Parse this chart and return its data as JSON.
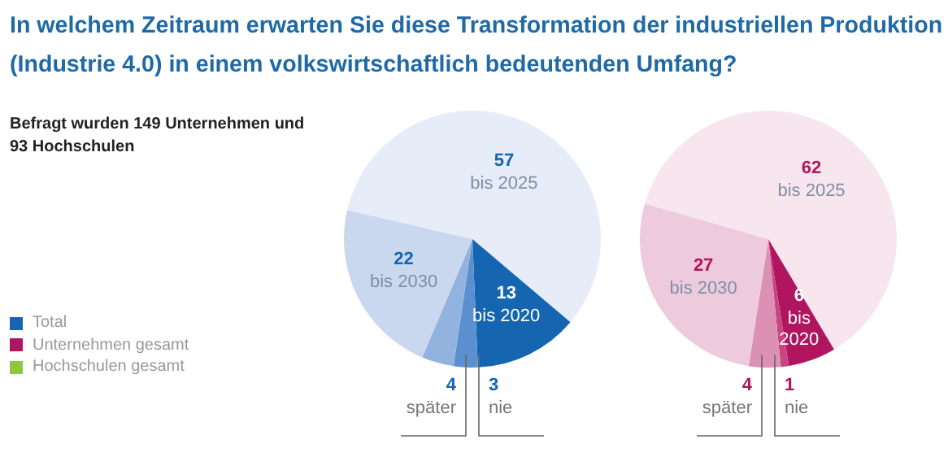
{
  "chart_data": [
    {
      "type": "other",
      "title": "In welchem Zeitraum erwarten Sie diese Transformation der industriellen Produktion (Industrie 4.0) in einem volkswirtschaftlich bedeutenden Umfang?",
      "subtitle": "Befragt wurden 149 Unternehmen und 93 Hochschulen",
      "annotations": [
        "Total",
        "Unternehmen gesamt",
        "Hochschulen gesamt"
      ],
      "colors": [
        "#1565b0",
        "#b0155f",
        "#8dc63f"
      ]
    },
    {
      "type": "pie",
      "categories": [
        "bis 2025",
        "bis 2020",
        "nie",
        "später",
        "bis 2030"
      ],
      "values": [
        57,
        13,
        3,
        4,
        22
      ],
      "colors": [
        "#e6edf8",
        "#1565b0",
        "#5b8fd0",
        "#93b3df",
        "#c9d8ef"
      ],
      "data_labels": true
    },
    {
      "type": "pie",
      "categories": [
        "bis 2025",
        "bis 2020",
        "nie",
        "später",
        "bis 2030"
      ],
      "values": [
        62,
        6,
        1,
        4,
        27
      ],
      "colors": [
        "#f8e6ef",
        "#b0155f",
        "#c9457f",
        "#dc90b4",
        "#eecbdc"
      ],
      "data_labels": true
    }
  ]
}
